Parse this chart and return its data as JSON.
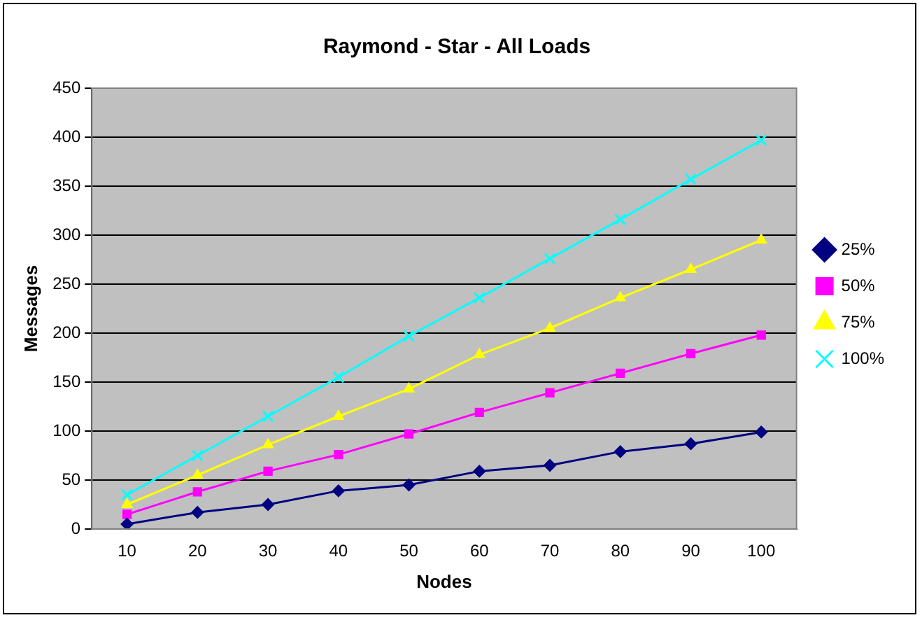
{
  "chart_data": {
    "type": "line",
    "title": "Raymond - Star - All Loads",
    "xlabel": "Nodes",
    "ylabel": "Messages",
    "categories": [
      "10",
      "20",
      "30",
      "40",
      "50",
      "60",
      "70",
      "80",
      "90",
      "100"
    ],
    "ylim": [
      0,
      450
    ],
    "yticks": [
      0,
      50,
      100,
      150,
      200,
      250,
      300,
      350,
      400,
      450
    ],
    "grid": "y",
    "legend": "right",
    "series": [
      {
        "name": "25%",
        "color": "#000080",
        "marker": "diamond",
        "values": [
          5,
          17,
          25,
          39,
          45,
          59,
          65,
          79,
          87,
          99
        ]
      },
      {
        "name": "50%",
        "color": "#ff00ff",
        "marker": "square",
        "values": [
          15,
          38,
          59,
          76,
          97,
          119,
          139,
          159,
          179,
          198
        ]
      },
      {
        "name": "75%",
        "color": "#ffff00",
        "marker": "triangle",
        "values": [
          25,
          55,
          86,
          115,
          143,
          178,
          205,
          236,
          265,
          295
        ]
      },
      {
        "name": "100%",
        "color": "#00ffff",
        "marker": "cross",
        "values": [
          35,
          75,
          115,
          155,
          197,
          236,
          276,
          316,
          357,
          397
        ]
      }
    ]
  }
}
